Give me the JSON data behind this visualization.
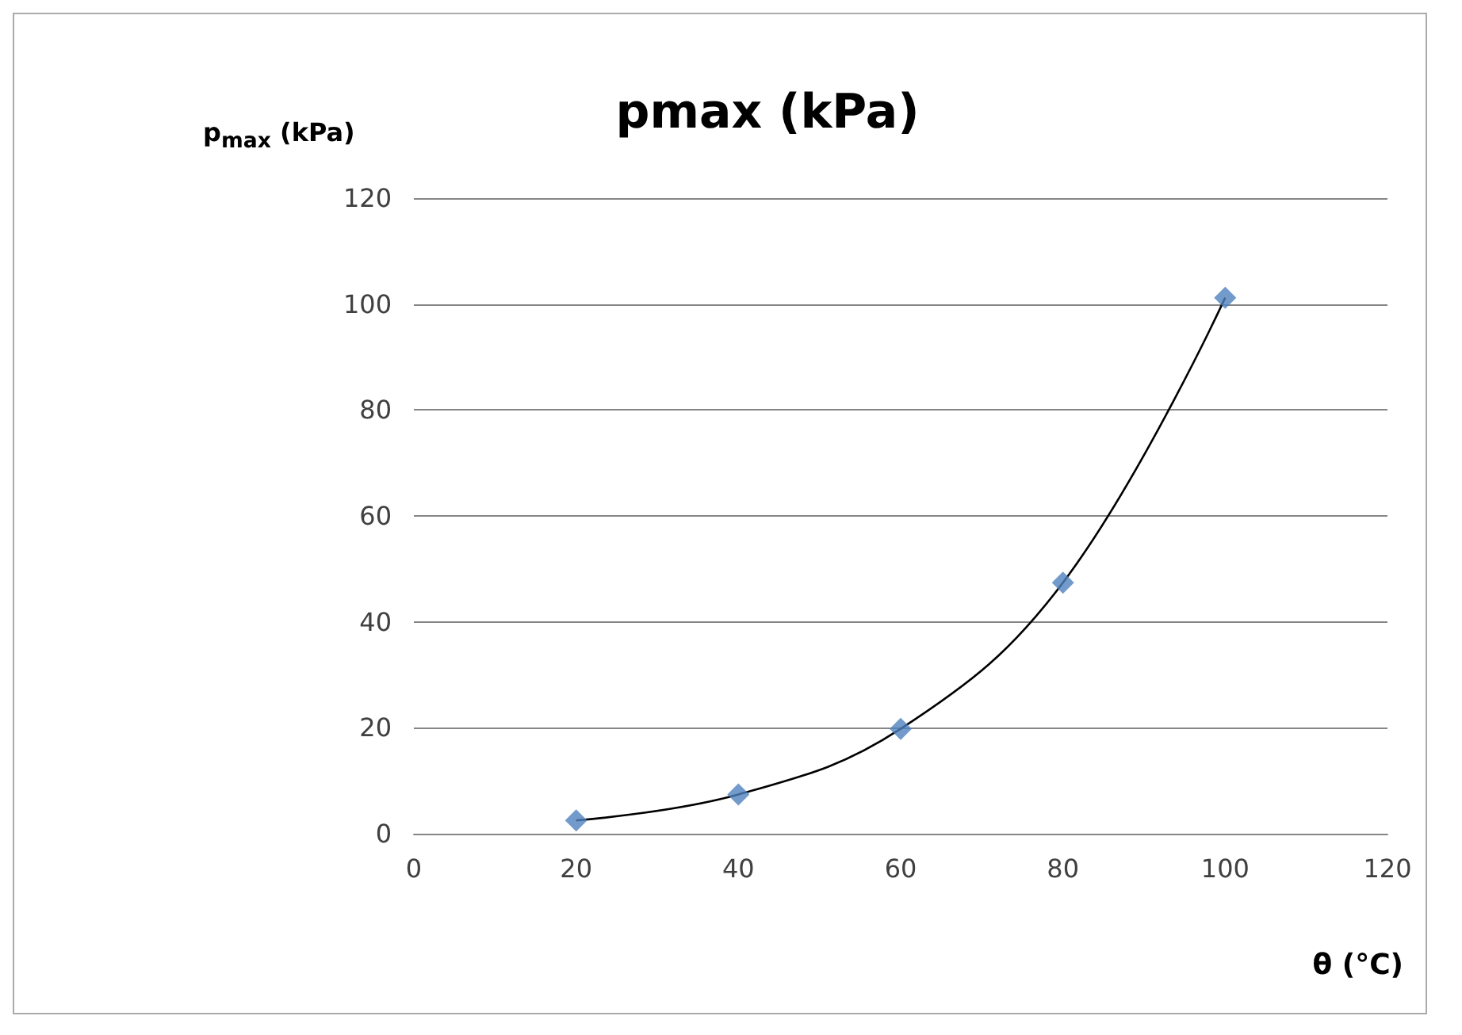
{
  "chart_data": {
    "type": "scatter",
    "title": "pmax (kPa)",
    "ylabel": "p$_{max}$ (kPa)",
    "xlabel": "θ (°C)",
    "x": [
      20,
      40,
      60,
      80,
      100
    ],
    "series": [
      {
        "color": "#4f81bd",
        "values": [
          2.5,
          7.4,
          19.8,
          47.4,
          101.2
        ],
        "marker": "diamond"
      },
      {
        "type": "line",
        "color": "#000000",
        "values": [
          2.5,
          7.4,
          19.8,
          47.4,
          101.2
        ],
        "marker": "none"
      }
    ],
    "xlim": [
      0,
      120
    ],
    "xticks": [
      0,
      20,
      40,
      60,
      80,
      100,
      120
    ],
    "ylim": [
      0,
      120
    ],
    "yticks": [
      0,
      20,
      40,
      60,
      80,
      100,
      120
    ],
    "grid": "y"
  }
}
